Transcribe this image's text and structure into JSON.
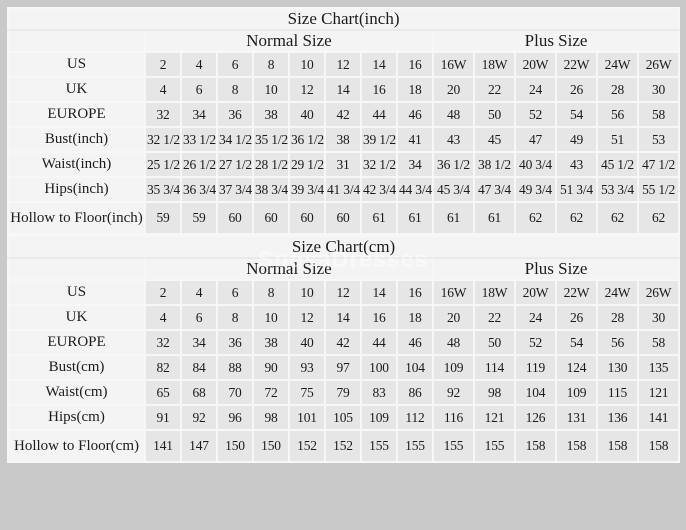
{
  "watermark": "SposaDresses",
  "colors": {
    "page_background": "#c9c9c9",
    "data_cell_background": "#e6e6e6",
    "label_cell_background": "#f4f4f4",
    "grid_line": "#f7f7f7",
    "text": "#1c1c1c",
    "watermark_text": "#ffffff"
  },
  "chart_data": [
    {
      "type": "table",
      "title": "Size Chart(inch)",
      "group_headers": [
        "Normal Size",
        "Plus Size"
      ],
      "normal_column_count": 8,
      "plus_column_count": 6,
      "columns": [
        "2",
        "4",
        "6",
        "8",
        "10",
        "12",
        "14",
        "16",
        "16W",
        "18W",
        "20W",
        "22W",
        "24W",
        "26W"
      ],
      "rows": [
        {
          "label": "US",
          "values": [
            "2",
            "4",
            "6",
            "8",
            "10",
            "12",
            "14",
            "16",
            "16W",
            "18W",
            "20W",
            "22W",
            "24W",
            "26W"
          ]
        },
        {
          "label": "UK",
          "values": [
            "4",
            "6",
            "8",
            "10",
            "12",
            "14",
            "16",
            "18",
            "20",
            "22",
            "24",
            "26",
            "28",
            "30"
          ]
        },
        {
          "label": "EUROPE",
          "values": [
            "32",
            "34",
            "36",
            "38",
            "40",
            "42",
            "44",
            "46",
            "48",
            "50",
            "52",
            "54",
            "56",
            "58"
          ]
        },
        {
          "label": "Bust(inch)",
          "values": [
            "32 1/2",
            "33 1/2",
            "34 1/2",
            "35 1/2",
            "36 1/2",
            "38",
            "39 1/2",
            "41",
            "43",
            "45",
            "47",
            "49",
            "51",
            "53"
          ]
        },
        {
          "label": "Waist(inch)",
          "values": [
            "25 1/2",
            "26 1/2",
            "27 1/2",
            "28 1/2",
            "29 1/2",
            "31",
            "32 1/2",
            "34",
            "36 1/2",
            "38 1/2",
            "40 3/4",
            "43",
            "45 1/2",
            "47 1/2"
          ]
        },
        {
          "label": "Hips(inch)",
          "values": [
            "35 3/4",
            "36 3/4",
            "37 3/4",
            "38 3/4",
            "39 3/4",
            "41 3/4",
            "42 3/4",
            "44 3/4",
            "45 3/4",
            "47 3/4",
            "49 3/4",
            "51 3/4",
            "53 3/4",
            "55 1/2"
          ]
        },
        {
          "label": "Hollow to Floor(inch)",
          "values": [
            "59",
            "59",
            "60",
            "60",
            "60",
            "60",
            "61",
            "61",
            "61",
            "61",
            "62",
            "62",
            "62",
            "62"
          ]
        }
      ]
    },
    {
      "type": "table",
      "title": "Size Chart(cm)",
      "group_headers": [
        "Normal Size",
        "Plus Size"
      ],
      "normal_column_count": 8,
      "plus_column_count": 6,
      "columns": [
        "2",
        "4",
        "6",
        "8",
        "10",
        "12",
        "14",
        "16",
        "16W",
        "18W",
        "20W",
        "22W",
        "24W",
        "26W"
      ],
      "rows": [
        {
          "label": "US",
          "values": [
            "2",
            "4",
            "6",
            "8",
            "10",
            "12",
            "14",
            "16",
            "16W",
            "18W",
            "20W",
            "22W",
            "24W",
            "26W"
          ]
        },
        {
          "label": "UK",
          "values": [
            "4",
            "6",
            "8",
            "10",
            "12",
            "14",
            "16",
            "18",
            "20",
            "22",
            "24",
            "26",
            "28",
            "30"
          ]
        },
        {
          "label": "EUROPE",
          "values": [
            "32",
            "34",
            "36",
            "38",
            "40",
            "42",
            "44",
            "46",
            "48",
            "50",
            "52",
            "54",
            "56",
            "58"
          ]
        },
        {
          "label": "Bust(cm)",
          "values": [
            "82",
            "84",
            "88",
            "90",
            "93",
            "97",
            "100",
            "104",
            "109",
            "114",
            "119",
            "124",
            "130",
            "135"
          ]
        },
        {
          "label": "Waist(cm)",
          "values": [
            "65",
            "68",
            "70",
            "72",
            "75",
            "79",
            "83",
            "86",
            "92",
            "98",
            "104",
            "109",
            "115",
            "121"
          ]
        },
        {
          "label": "Hips(cm)",
          "values": [
            "91",
            "92",
            "96",
            "98",
            "101",
            "105",
            "109",
            "112",
            "116",
            "121",
            "126",
            "131",
            "136",
            "141"
          ]
        },
        {
          "label": "Hollow to Floor(cm)",
          "values": [
            "141",
            "147",
            "150",
            "150",
            "152",
            "152",
            "155",
            "155",
            "155",
            "155",
            "158",
            "158",
            "158",
            "158"
          ]
        }
      ]
    }
  ]
}
